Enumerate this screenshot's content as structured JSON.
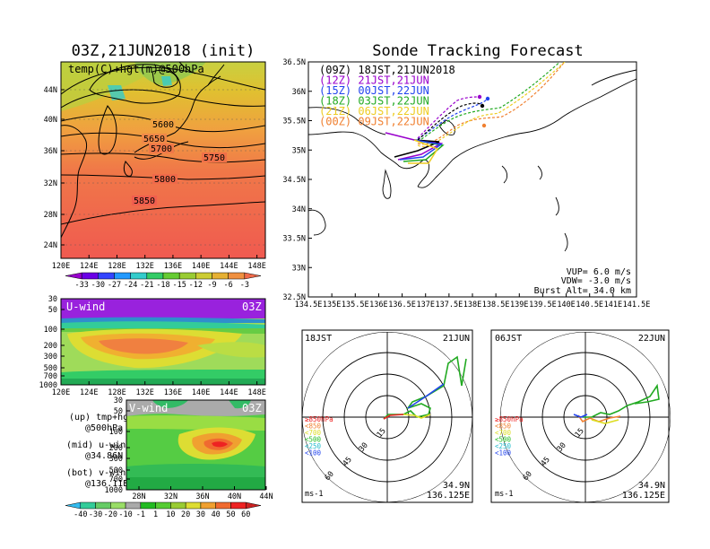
{
  "init_panel": {
    "title": "03Z,21JUN2018 (init)",
    "label": "temp(C)+hgt(m)@500hPa",
    "lat_ticks": [
      "44N",
      "40N",
      "36N",
      "32N",
      "28N",
      "24N"
    ],
    "lon_ticks": [
      "120E",
      "124E",
      "128E",
      "132E",
      "136E",
      "140E",
      "144E",
      "148E"
    ],
    "contour_labels": [
      "5600",
      "5650",
      "5700",
      "5750",
      "5800",
      "5850"
    ],
    "colorbar_ticks": [
      "-33",
      "-30",
      "-27",
      "-24",
      "-21",
      "-18",
      "-15",
      "-12",
      "-9",
      "-6",
      "-3"
    ],
    "colorbar_colors": [
      "#9900cc",
      "#6a00e6",
      "#3344ff",
      "#2299ff",
      "#33cccc",
      "#33cc66",
      "#66cc33",
      "#99cc33",
      "#cccc33",
      "#e6b033",
      "#f09040",
      "#f06a4a"
    ]
  },
  "uwind_panel": {
    "label": "U-wind",
    "time": "03Z",
    "p_ticks": [
      "30",
      "50",
      "100",
      "200",
      "300",
      "500",
      "700",
      "1000"
    ],
    "lon_ticks": [
      "120E",
      "124E",
      "128E",
      "132E",
      "136E",
      "140E",
      "144E",
      "148E"
    ]
  },
  "vwind_panel": {
    "label": "V-wind",
    "time": "03Z",
    "p_ticks": [
      "30",
      "50",
      "100",
      "200",
      "300",
      "500",
      "700",
      "1000"
    ],
    "lat_ticks": [
      "28N",
      "32N",
      "36N",
      "40N",
      "44N"
    ],
    "colorbar_ticks": [
      "-40",
      "-30",
      "-20",
      "-10",
      "-1",
      "1",
      "10",
      "20",
      "30",
      "40",
      "50",
      "60"
    ],
    "colorbar_colors": [
      "#33bbee",
      "#33cc99",
      "#66cc66",
      "#99dd66",
      "#aaaaaa",
      "#22bb22",
      "#55cc33",
      "#99cc33",
      "#dddd33",
      "#f0a030",
      "#f06a30",
      "#ee2222",
      "#cc2222"
    ]
  },
  "legend_text": {
    "up": "(up) tmp+hgt",
    "up2": "@500hPa",
    "mid": "(mid) u-wind",
    "mid2": "@34.86N",
    "bot": "(bot) v-wind",
    "bot2": "@136.11E"
  },
  "track_panel": {
    "title": "Sonde Tracking Forecast",
    "lat_ticks": [
      "36.5N",
      "36N",
      "35.5N",
      "35N",
      "34.5N",
      "34N",
      "33.5N",
      "33N",
      "32.5N"
    ],
    "lon_ticks": [
      "134.5E",
      "135E",
      "135.5E",
      "136E",
      "136.5E",
      "137E",
      "137.5E",
      "138E",
      "138.5E",
      "139E",
      "139.5E",
      "140E",
      "140.5E",
      "141E",
      "141.5E"
    ],
    "runs": [
      {
        "label": "(09Z)  18JST,21JUN2018",
        "color": "#000000"
      },
      {
        "label": "(12Z)  21JST,21JUN",
        "color": "#9900cc"
      },
      {
        "label": "(15Z)  00JST,22JUN",
        "color": "#2244ee"
      },
      {
        "label": "(18Z)  03JST,22JUN",
        "color": "#22aa22"
      },
      {
        "label": "(21Z)  06JST,22JUN",
        "color": "#eecc22"
      },
      {
        "label": "(00Z)  09JST,22JUN",
        "color": "#f08030"
      }
    ],
    "params": [
      "VUP=  6.0 m/s",
      "VDW= -3.0 m/s",
      "Burst Alt= 34.0 km"
    ]
  },
  "polar_left": {
    "time": "18JST",
    "date": "21JUN",
    "ring_labels": [
      "15",
      "30",
      "45",
      "60"
    ],
    "pressure_legend": [
      {
        "text": "≥850hPa",
        "color": "#ee2222"
      },
      {
        "text": "<850",
        "color": "#f08030"
      },
      {
        "text": "<700",
        "color": "#dddd22"
      },
      {
        "text": "<500",
        "color": "#22bb22"
      },
      {
        "text": "<250",
        "color": "#22bbcc"
      },
      {
        "text": "<100",
        "color": "#2244ee"
      }
    ],
    "unit": "ms-1",
    "lat": "34.9N",
    "lon": "136.125E"
  },
  "polar_right": {
    "time": "06JST",
    "date": "22JUN",
    "ring_labels": [
      "15",
      "30",
      "45",
      "60"
    ],
    "pressure_legend": [
      {
        "text": "≥850hPa",
        "color": "#ee2222"
      },
      {
        "text": "<850",
        "color": "#f08030"
      },
      {
        "text": "<700",
        "color": "#dddd22"
      },
      {
        "text": "<500",
        "color": "#22bb22"
      },
      {
        "text": "<250",
        "color": "#22bbcc"
      },
      {
        "text": "<100",
        "color": "#2244ee"
      }
    ],
    "unit": "ms-1",
    "lat": "34.9N",
    "lon": "136.125E"
  }
}
